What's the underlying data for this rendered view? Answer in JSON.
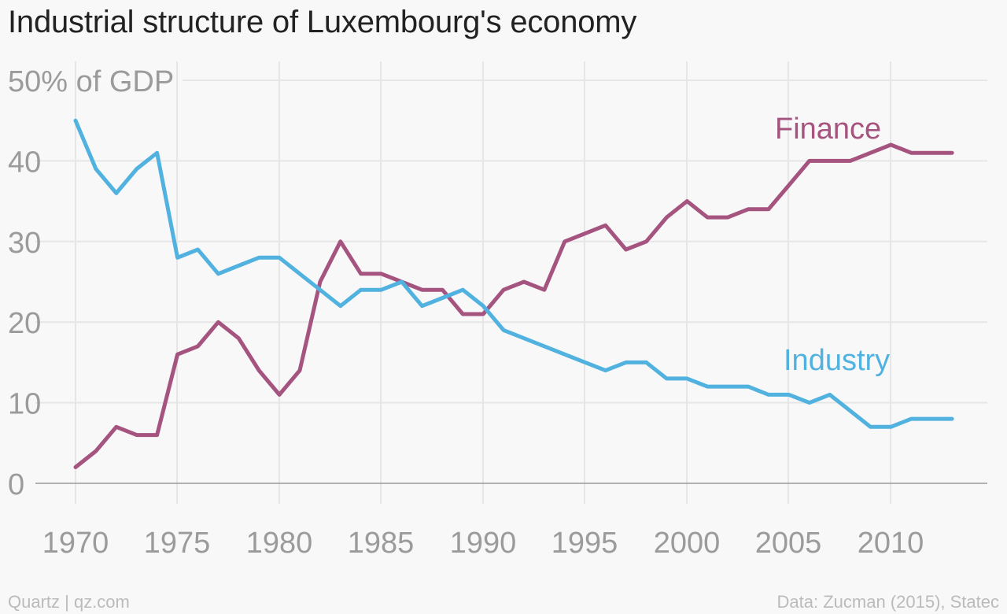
{
  "title": "Industrial structure of Luxembourg's economy",
  "footer": {
    "source_left": "Quartz | qz.com",
    "source_right": "Data: Zucman (2015), Statec"
  },
  "colors": {
    "finance": "#a5537f",
    "industry": "#51b2e0",
    "grid": "#e6e6e6",
    "axis": "#999999",
    "tick_text": "#9b9b9b"
  },
  "chart_data": {
    "type": "line",
    "title": "Industrial structure of Luxembourg's economy",
    "ylabel": "50% of GDP",
    "xlabel": "",
    "ylim": [
      0,
      50
    ],
    "xlim": [
      1968,
      2014
    ],
    "yticks": [
      0,
      10,
      20,
      30,
      40,
      50
    ],
    "ytick_labels": [
      "0",
      "10",
      "20",
      "30",
      "40",
      "50% of GDP"
    ],
    "xticks": [
      1970,
      1975,
      1980,
      1985,
      1990,
      1995,
      2000,
      2005,
      2010
    ],
    "xtick_labels": [
      "1970",
      "1975",
      "1980",
      "1985",
      "1990",
      "1995",
      "2000",
      "2005",
      "2010"
    ],
    "grid": true,
    "legend": "inline labels",
    "x": [
      1970,
      1971,
      1972,
      1973,
      1974,
      1975,
      1976,
      1977,
      1978,
      1979,
      1980,
      1981,
      1982,
      1983,
      1984,
      1985,
      1986,
      1987,
      1988,
      1989,
      1990,
      1991,
      1992,
      1993,
      1994,
      1995,
      1996,
      1997,
      1998,
      1999,
      2000,
      2001,
      2002,
      2003,
      2004,
      2005,
      2006,
      2007,
      2008,
      2009,
      2010,
      2011,
      2012,
      2013
    ],
    "series": [
      {
        "name": "Finance",
        "color": "#a5537f",
        "values": [
          2,
          4,
          7,
          6,
          6,
          16,
          17,
          20,
          18,
          14,
          11,
          14,
          25,
          30,
          26,
          26,
          25,
          24,
          24,
          21,
          21,
          24,
          25,
          24,
          30,
          31,
          32,
          29,
          30,
          33,
          35,
          33,
          33,
          34,
          34,
          37,
          40,
          40,
          40,
          41,
          42,
          41,
          41,
          41
        ]
      },
      {
        "name": "Industry",
        "color": "#51b2e0",
        "values": [
          45,
          39,
          36,
          39,
          41,
          28,
          29,
          26,
          27,
          28,
          28,
          26,
          24,
          22,
          24,
          24,
          25,
          22,
          23,
          24,
          22,
          19,
          18,
          17,
          16,
          15,
          14,
          15,
          15,
          13,
          13,
          12,
          12,
          12,
          11,
          11,
          10,
          11,
          9,
          7,
          7,
          8,
          8,
          8
        ]
      }
    ]
  }
}
